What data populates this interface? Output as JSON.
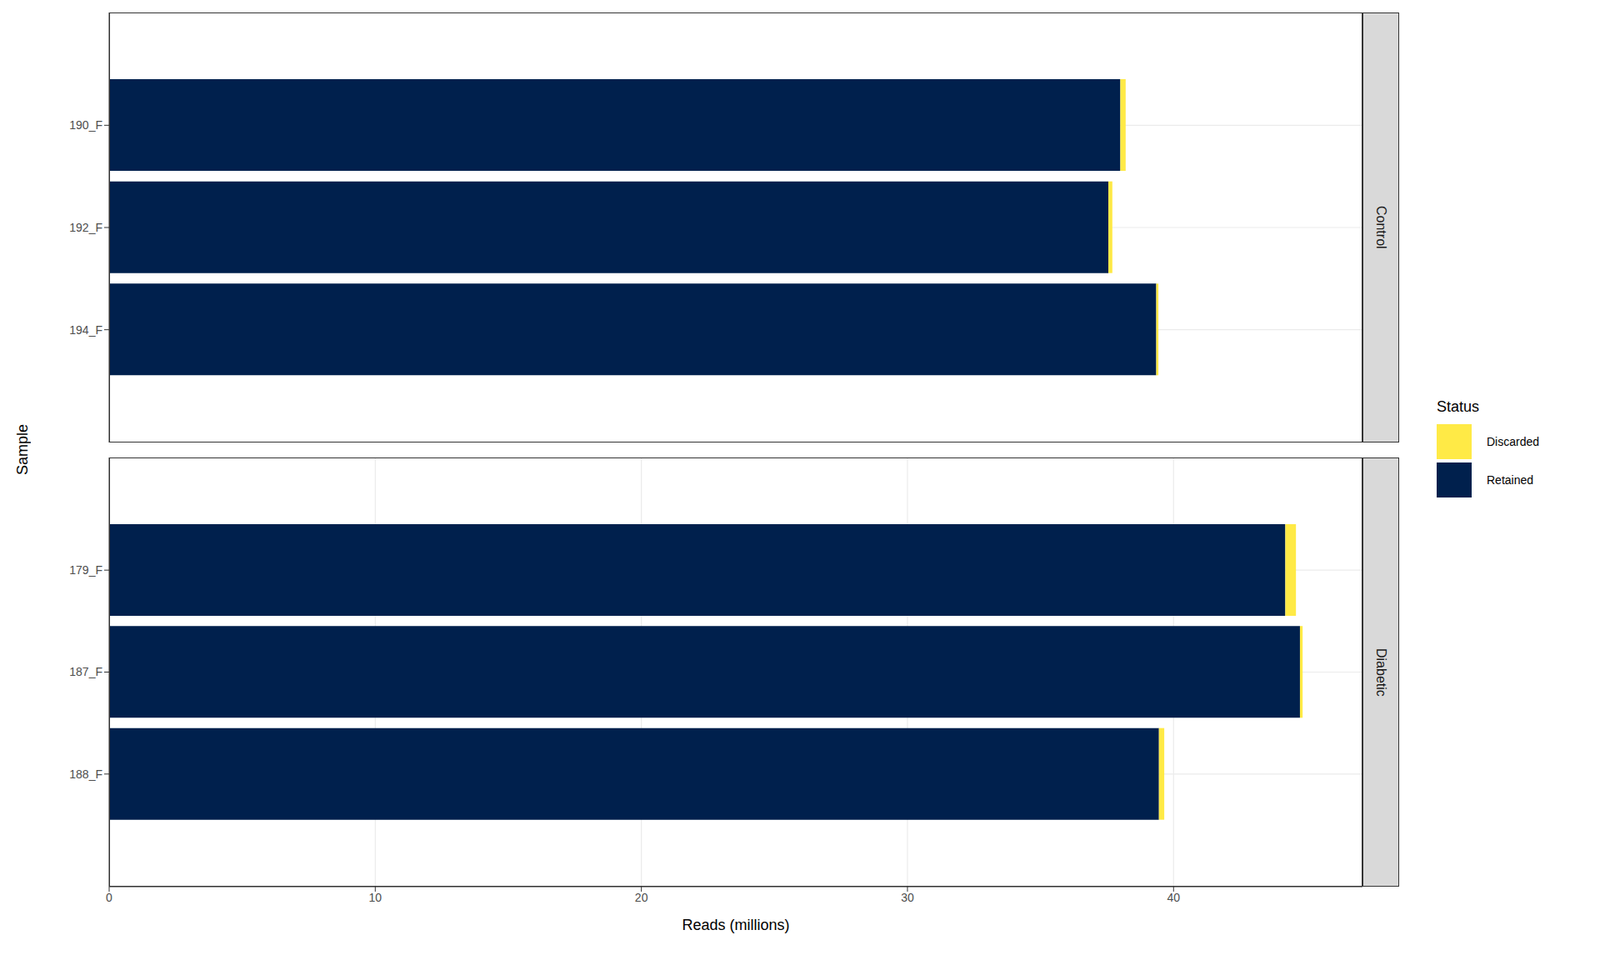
{
  "chart_data": {
    "type": "bar",
    "orientation": "horizontal",
    "stacked": true,
    "grid": true,
    "legend": "right",
    "legend_title": "Status",
    "x_label": "Reads (millions)",
    "y_label": "Sample",
    "xlim": [
      0,
      47.1
    ],
    "xticks": [
      0,
      10,
      20,
      30,
      40
    ],
    "facets": [
      {
        "title": "Control",
        "categories": [
          "190_F",
          "192_F",
          "194_F"
        ],
        "series": [
          {
            "name": "Discarded",
            "color": "#ffea46",
            "values": [
              0.2,
              0.15,
              0.08
            ]
          },
          {
            "name": "Retained",
            "color": "#00204d",
            "values": [
              38.0,
              37.55,
              39.35
            ]
          }
        ]
      },
      {
        "title": "Diabetic",
        "categories": [
          "179_F",
          "187_F",
          "188_F"
        ],
        "series": [
          {
            "name": "Discarded",
            "color": "#ffea46",
            "values": [
              0.4,
              0.1,
              0.2
            ]
          },
          {
            "name": "Retained",
            "color": "#00204d",
            "values": [
              44.2,
              44.75,
              39.45
            ]
          }
        ]
      }
    ]
  }
}
